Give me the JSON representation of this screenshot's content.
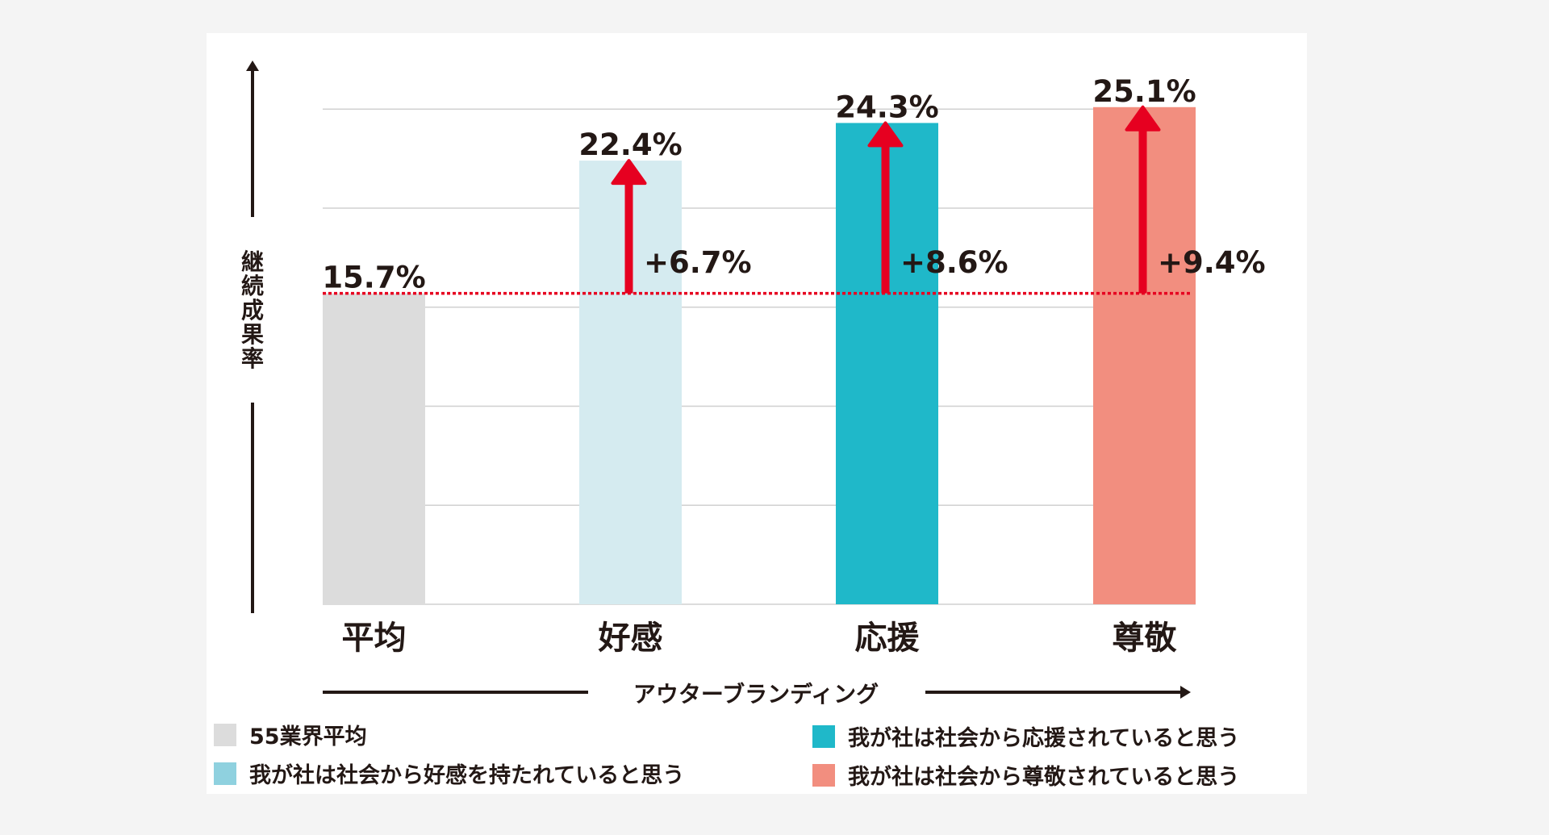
{
  "chart_data": {
    "type": "bar",
    "title": "",
    "xlabel": "アウターブランディング",
    "ylabel": "継続成果率",
    "ylim": [
      0,
      25
    ],
    "grid": true,
    "categories": [
      "平均",
      "好感",
      "応援",
      "尊敬"
    ],
    "values": [
      15.7,
      22.4,
      24.3,
      25.1
    ],
    "value_labels": [
      "15.7%",
      "22.4%",
      "24.3%",
      "25.1%"
    ],
    "baseline": 15.7,
    "deltas": [
      null,
      6.7,
      8.6,
      9.4
    ],
    "delta_labels": [
      "",
      "+6.7%",
      "+8.6%",
      "+9.4%"
    ],
    "bar_colors": [
      "#dcdcdc",
      "#d5ebf0",
      "#1fb8c9",
      "#f28e7f"
    ],
    "legend": [
      {
        "label": "55業界平均",
        "color": "#dcdcdc"
      },
      {
        "label": "我が社は社会から好感を持たれていると思う",
        "color": "#8fd1df"
      },
      {
        "label": "我が社は社会から応援されていると思う",
        "color": "#1fb8c9"
      },
      {
        "label": "我が社は社会から尊敬されていると思う",
        "color": "#f28e7f"
      }
    ],
    "legend_position": "bottom"
  },
  "colors": {
    "arrow": "#e60020",
    "text": "#231815",
    "grid": "#d0d0d0"
  }
}
